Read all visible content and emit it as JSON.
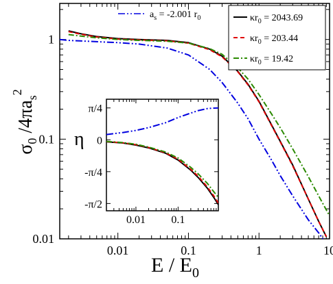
{
  "chart_data": {
    "type": "line",
    "xlabel": "E / E",
    "xlabel_sub": "0",
    "ylabel": "σ",
    "ylabel_parts": {
      "sym": "σ",
      "sub1": "0",
      "rest": " /4πa",
      "sub2": "s",
      "sup": "2"
    },
    "xlim": [
      0.0015,
      10
    ],
    "ylim": [
      0.01,
      2.3
    ],
    "xscale": "log",
    "yscale": "log",
    "xticks": [
      {
        "value": 0.01,
        "label": "0.01"
      },
      {
        "value": 0.1,
        "label": "0.1"
      },
      {
        "value": 1,
        "label": "1"
      },
      {
        "value": 10,
        "label": "10"
      }
    ],
    "yticks": [
      {
        "value": 0.01,
        "label": "0.01"
      },
      {
        "value": 0.1,
        "label": "0.1"
      },
      {
        "value": 1,
        "label": "1"
      }
    ],
    "legend": {
      "placement": "top-right",
      "top_left_label": {
        "a": "a",
        "a_sub": "s",
        "mid": " = -2.001 r",
        "r_sub": "0"
      },
      "entries": [
        {
          "k": "κr",
          "sub": "0",
          "val": " = 2043.69"
        },
        {
          "k": "κr",
          "sub": "0",
          "val": " = 203.44"
        },
        {
          "k": "κr",
          "sub": "0",
          "val": " = 19.42"
        }
      ]
    },
    "series": [
      {
        "name": "κr0 = 2043.69",
        "color": "#000000",
        "dash": "solid",
        "x": [
          0.002,
          0.003,
          0.005,
          0.01,
          0.02,
          0.05,
          0.1,
          0.2,
          0.3,
          0.5,
          0.7,
          1,
          1.5,
          2,
          3,
          5,
          7,
          9
        ],
        "y": [
          1.22,
          1.14,
          1.07,
          1.02,
          1.0,
          0.98,
          0.93,
          0.8,
          0.68,
          0.48,
          0.355,
          0.24,
          0.14,
          0.095,
          0.055,
          0.025,
          0.015,
          0.0105
        ]
      },
      {
        "name": "κr0 = 203.44",
        "color": "#e00000",
        "dash": "dashed",
        "x": [
          0.002,
          0.003,
          0.005,
          0.01,
          0.02,
          0.05,
          0.1,
          0.2,
          0.3,
          0.5,
          0.7,
          1,
          1.5,
          2,
          3,
          5,
          7,
          9
        ],
        "y": [
          1.2,
          1.13,
          1.06,
          1.01,
          0.99,
          0.97,
          0.92,
          0.79,
          0.67,
          0.475,
          0.35,
          0.237,
          0.138,
          0.094,
          0.054,
          0.025,
          0.015,
          0.0105
        ]
      },
      {
        "name": "κr0 = 19.42",
        "color": "#2a8a00",
        "dash": "dashdot",
        "x": [
          0.002,
          0.003,
          0.005,
          0.01,
          0.02,
          0.05,
          0.1,
          0.2,
          0.3,
          0.5,
          0.7,
          1,
          1.5,
          2,
          3,
          5,
          7,
          10
        ],
        "y": [
          1.12,
          1.08,
          1.04,
          1.0,
          0.98,
          0.96,
          0.92,
          0.81,
          0.71,
          0.52,
          0.4,
          0.28,
          0.18,
          0.13,
          0.08,
          0.042,
          0.027,
          0.017
        ]
      },
      {
        "name": "as = -2.001 r0",
        "color": "#0000e0",
        "dash": "dashdotdot",
        "x": [
          0.0015,
          0.002,
          0.005,
          0.01,
          0.02,
          0.05,
          0.1,
          0.2,
          0.3,
          0.5,
          0.7,
          1,
          1.5,
          2,
          3,
          5,
          7,
          10
        ],
        "y": [
          1.0,
          0.98,
          0.95,
          0.93,
          0.9,
          0.82,
          0.7,
          0.5,
          0.37,
          0.23,
          0.16,
          0.1,
          0.062,
          0.043,
          0.027,
          0.0155,
          0.0115,
          0.008
        ]
      }
    ],
    "inset": {
      "ylabel": "η",
      "xscale": "log",
      "xlim": [
        0.002,
        0.9
      ],
      "ylim": [
        -1.75,
        1.0
      ],
      "xticks": [
        {
          "value": 0.01,
          "label": "0.01"
        },
        {
          "value": 0.1,
          "label": "0.1"
        }
      ],
      "yticks": [
        {
          "value": 0.7854,
          "label": "π/4"
        },
        {
          "value": 0,
          "label": "0"
        },
        {
          "value": -0.7854,
          "label": "-π/4"
        },
        {
          "value": -1.5708,
          "label": "-π/2"
        }
      ],
      "series": [
        {
          "color": "#000000",
          "dash": "solid",
          "x": [
            0.002,
            0.005,
            0.01,
            0.02,
            0.05,
            0.1,
            0.2,
            0.3,
            0.5,
            0.7,
            0.9
          ],
          "y": [
            -0.05,
            -0.08,
            -0.13,
            -0.2,
            -0.33,
            -0.5,
            -0.75,
            -0.93,
            -1.2,
            -1.42,
            -1.6
          ]
        },
        {
          "color": "#e00000",
          "dash": "dashed",
          "x": [
            0.002,
            0.005,
            0.01,
            0.02,
            0.05,
            0.1,
            0.2,
            0.3,
            0.5,
            0.7,
            0.9
          ],
          "y": [
            -0.045,
            -0.075,
            -0.12,
            -0.19,
            -0.32,
            -0.48,
            -0.73,
            -0.9,
            -1.17,
            -1.38,
            -1.56
          ]
        },
        {
          "color": "#2a8a00",
          "dash": "dashdot",
          "x": [
            0.002,
            0.005,
            0.01,
            0.02,
            0.05,
            0.1,
            0.2,
            0.3,
            0.5,
            0.7,
            0.9
          ],
          "y": [
            -0.04,
            -0.07,
            -0.11,
            -0.18,
            -0.3,
            -0.45,
            -0.68,
            -0.84,
            -1.08,
            -1.28,
            -1.42
          ]
        },
        {
          "color": "#0000e0",
          "dash": "dashdotdot",
          "x": [
            0.002,
            0.005,
            0.01,
            0.02,
            0.05,
            0.1,
            0.2,
            0.3,
            0.5,
            0.7,
            0.9
          ],
          "y": [
            0.13,
            0.18,
            0.23,
            0.3,
            0.42,
            0.55,
            0.66,
            0.72,
            0.77,
            0.78,
            0.785
          ]
        }
      ]
    }
  }
}
